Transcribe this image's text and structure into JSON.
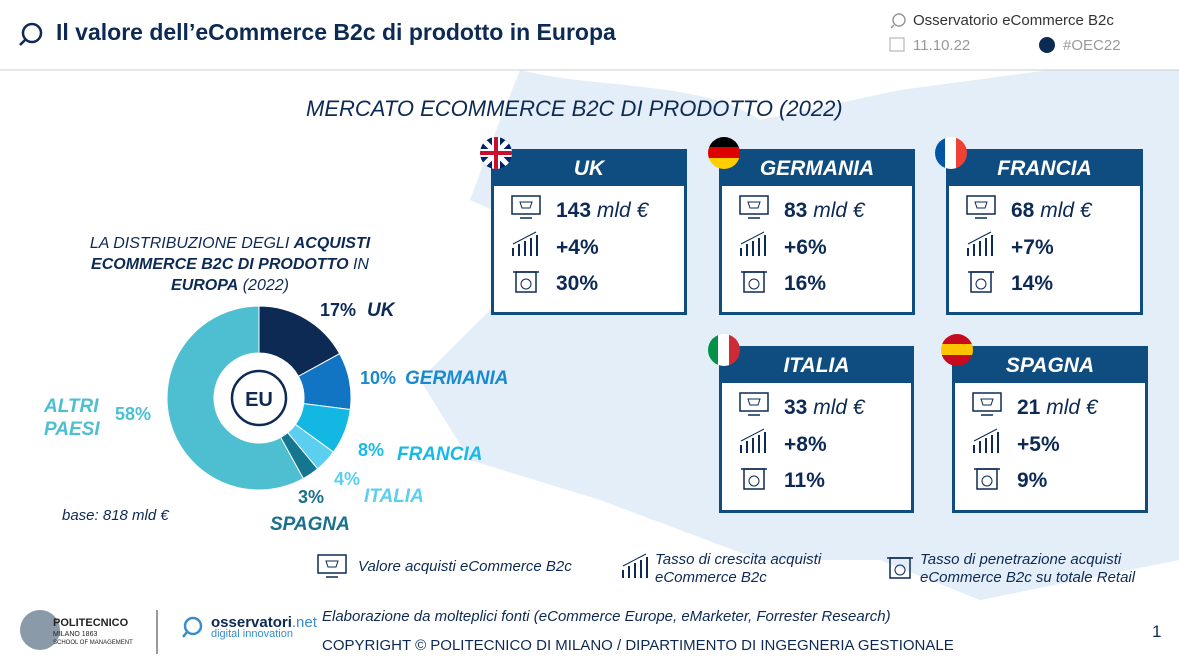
{
  "header": {
    "title": "Il valore dell’eCommerce B2c di prodotto in Europa",
    "observatory": "Osservatorio eCommerce B2c",
    "date": "11.10.22",
    "hashtag": "#OEC22"
  },
  "main_title": "MERCATO ECOMMERCE B2C DI PRODOTTO (2022)",
  "chart_data": {
    "type": "pie",
    "donut": true,
    "title_parts": [
      {
        "text": "LA DISTRIBUZIONE DEGLI ",
        "bold": false
      },
      {
        "text": "ACQUISTI ECOMMERCE B2C DI PRODOTTO",
        "bold": true
      },
      {
        "text": " IN ",
        "bold": false
      },
      {
        "text": "EUROPA",
        "bold": true
      },
      {
        "text": " (2022)",
        "bold": false
      }
    ],
    "center_label": "EU",
    "categories": [
      "UK",
      "GERMANIA",
      "FRANCIA",
      "ITALIA",
      "SPAGNA",
      "ALTRI PAESI"
    ],
    "values": [
      17,
      10,
      8,
      4,
      3,
      58
    ],
    "value_labels": [
      "17%",
      "10%",
      "8%",
      "4%",
      "3%",
      "58%"
    ],
    "colors": [
      "#0d2a55",
      "#1175c4",
      "#12b8e2",
      "#5ccff0",
      "#15778f",
      "#4dbfd0"
    ],
    "label_colors": [
      "#0d2a55",
      "#1a8ad0",
      "#19b9e6",
      "#5ccff0",
      "#1a6f8c",
      "#4dbfd0"
    ],
    "note": "base: 818 mld €"
  },
  "cards": [
    {
      "country": "UK",
      "value": "143",
      "unit": "mld €",
      "growth": "+4%",
      "penetration": "30%"
    },
    {
      "country": "GERMANIA",
      "value": "83",
      "unit": "mld €",
      "growth": "+6%",
      "penetration": "16%"
    },
    {
      "country": "FRANCIA",
      "value": "68",
      "unit": "mld €",
      "growth": "+7%",
      "penetration": "14%"
    },
    {
      "country": "ITALIA",
      "value": "33",
      "unit": "mld €",
      "growth": "+8%",
      "penetration": "11%"
    },
    {
      "country": "SPAGNA",
      "value": "21",
      "unit": "mld €",
      "growth": "+5%",
      "penetration": "9%"
    }
  ],
  "legend": [
    "Valore acquisti eCommerce B2c",
    "Tasso di crescita acquisti eCommerce B2c",
    "Tasso di penetrazione acquisti eCommerce B2c su totale Retail"
  ],
  "footer": {
    "school": "POLITECNICO",
    "city": "MILANO 1863",
    "dept": "SCHOOL OF MANAGEMENT",
    "brand": "osservatori",
    "brand_suffix": ".net",
    "brand_sub": "digital innovation",
    "source": "Elaborazione da molteplici fonti (eCommerce Europe, eMarketer, Forrester Research)",
    "copyright": "COPYRIGHT © POLITECNICO DI MILANO / DIPARTIMENTO DI INGEGNERIA GESTIONALE",
    "page": "1"
  }
}
